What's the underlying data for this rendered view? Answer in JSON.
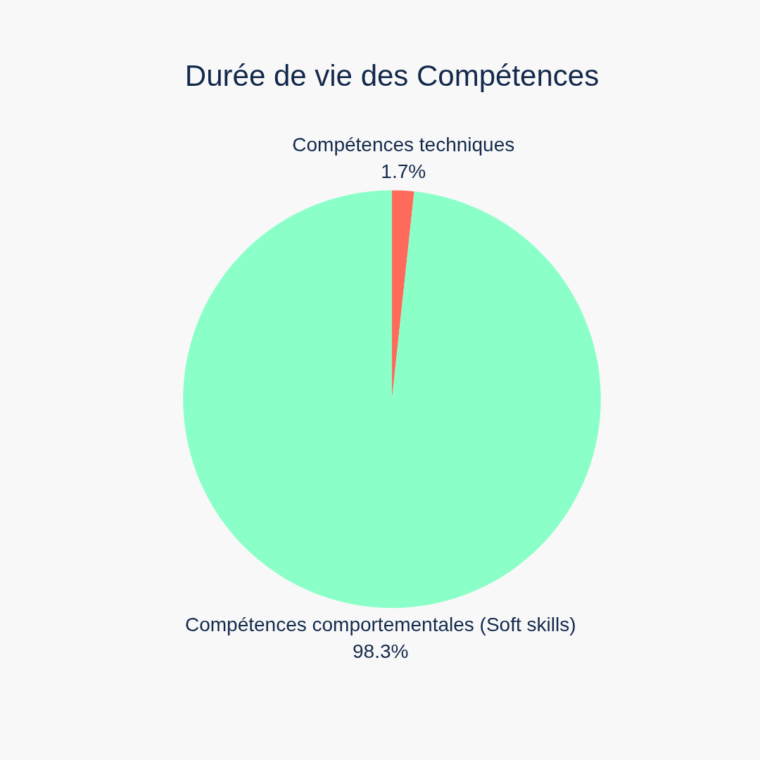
{
  "chart_data": {
    "type": "pie",
    "title": "Durée de vie des Compétences",
    "categories": [
      "Compétences techniques",
      "Compétences comportementales (Soft skills)"
    ],
    "values": [
      1.7,
      98.3
    ],
    "colors": [
      "#ff6b5b",
      "#8affc8"
    ],
    "value_labels": [
      "1.7%",
      "98.3%"
    ],
    "legend": false
  }
}
